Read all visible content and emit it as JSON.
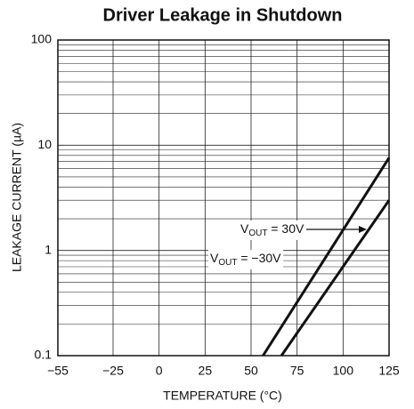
{
  "chart_data": {
    "type": "line",
    "title": "Driver Leakage in Shutdown",
    "x_label": "TEMPERATURE (°C)",
    "y_label": "LEAKAGE CURRENT (µA)",
    "log_scale_y": true,
    "grid": true,
    "xlim": [
      -55,
      125
    ],
    "xticks": [
      {
        "value": -55,
        "label": "−55"
      },
      {
        "value": -25,
        "label": "−25"
      },
      0,
      25,
      50,
      75,
      100,
      125
    ],
    "ylim": [
      0.1,
      100
    ],
    "yticks": [
      0.1,
      1,
      10,
      100
    ],
    "series": [
      {
        "color": "#111111",
        "x": [
          56.5,
          125
        ],
        "values": [
          0.1,
          7.6
        ]
      },
      {
        "color": "#111111",
        "x": [
          66.5,
          125
        ],
        "values": [
          0.1,
          3.0
        ]
      }
    ],
    "annotations": [
      {
        "main": "V",
        "sub": "OUT",
        "rest": " = 30V"
      },
      {
        "main": "V",
        "sub": "OUT",
        "rest": " = −30V"
      }
    ]
  }
}
